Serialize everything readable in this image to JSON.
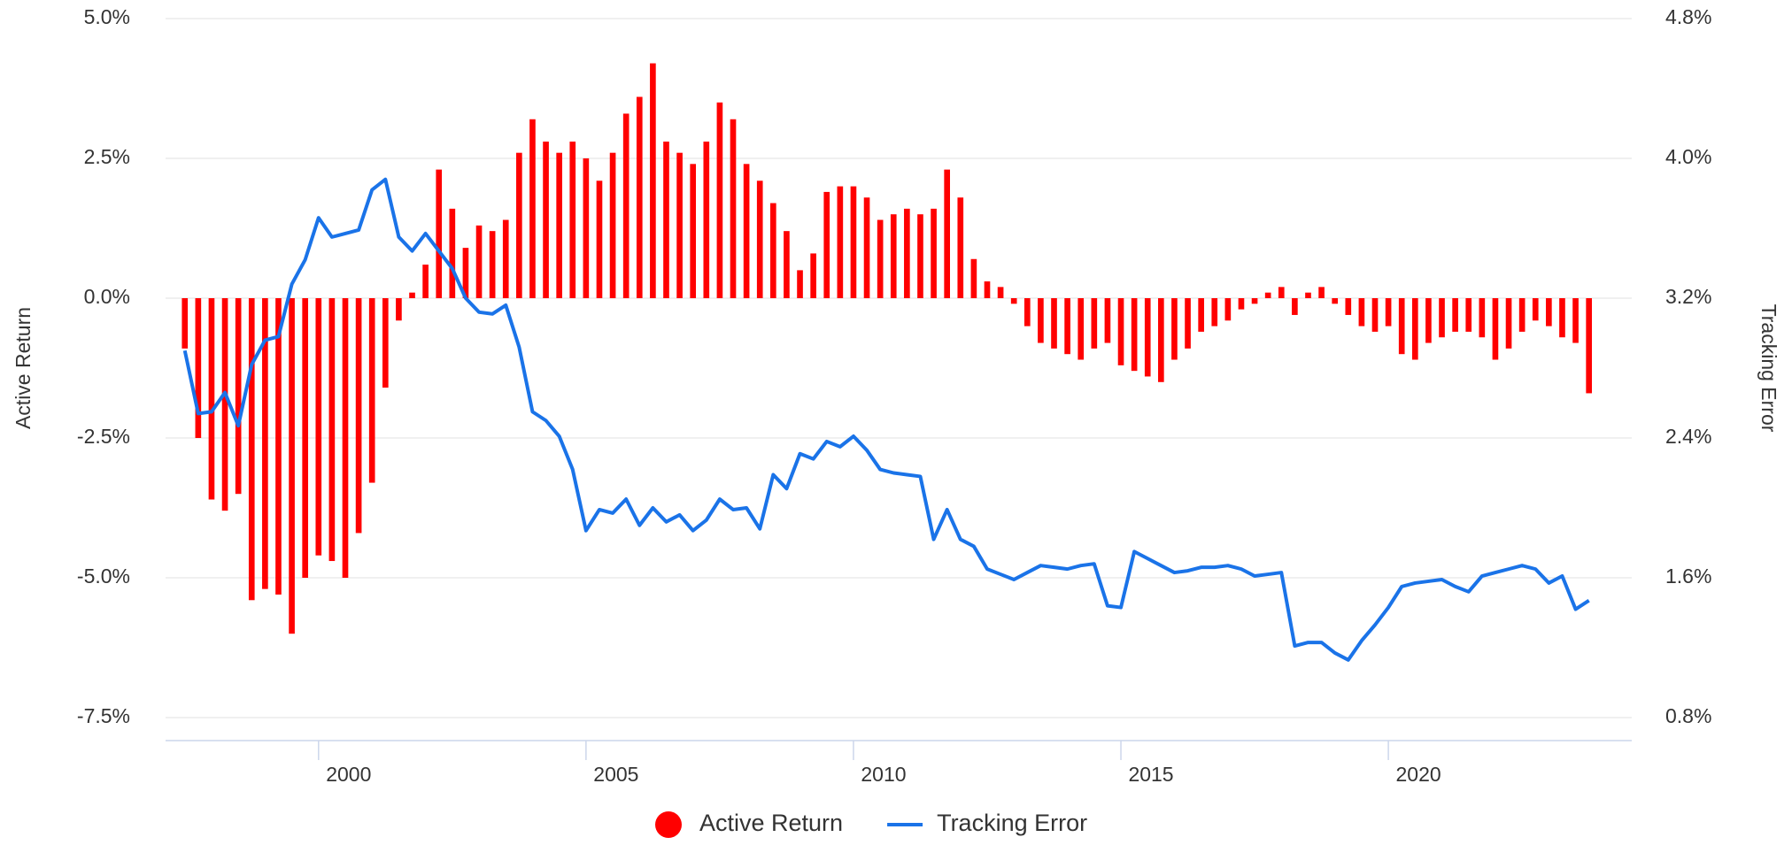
{
  "chart_data": {
    "type": "bar-line",
    "y_label": "Active Return",
    "y2_label": "Tracking Error",
    "xlim": [
      1997.14,
      2024.55
    ],
    "xticks": [
      2000,
      2005,
      2010,
      2015,
      2020
    ],
    "ylim": [
      -7.5,
      5
    ],
    "yticks": [
      {
        "value": -7.5,
        "label": "-7.5%"
      },
      {
        "value": -5,
        "label": "-5.0%"
      },
      {
        "value": -2.5,
        "label": "-2.5%"
      },
      {
        "value": 0,
        "label": "0.0%"
      },
      {
        "value": 2.5,
        "label": "2.5%"
      },
      {
        "value": 5,
        "label": "5.0%"
      }
    ],
    "y2lim": [
      0.8,
      4.8
    ],
    "y2ticks": [
      {
        "value": 0.8,
        "label": "0.8%"
      },
      {
        "value": 1.6,
        "label": "1.6%"
      },
      {
        "value": 2.4,
        "label": "2.4%"
      },
      {
        "value": 3.2,
        "label": "3.2%"
      },
      {
        "value": 4.0,
        "label": "4.0%"
      },
      {
        "value": 4.8,
        "label": "4.8%"
      }
    ],
    "grid": true,
    "legend": "bottom",
    "x": [
      1997.5,
      1997.75,
      1998,
      1998.25,
      1998.5,
      1998.75,
      1999,
      1999.25,
      1999.5,
      1999.75,
      2000,
      2000.25,
      2000.5,
      2000.75,
      2001,
      2001.25,
      2001.5,
      2001.75,
      2002,
      2002.25,
      2002.5,
      2002.75,
      2003,
      2003.25,
      2003.5,
      2003.75,
      2004,
      2004.25,
      2004.5,
      2004.75,
      2005,
      2005.25,
      2005.5,
      2005.75,
      2006,
      2006.25,
      2006.5,
      2006.75,
      2007,
      2007.25,
      2007.5,
      2007.75,
      2008,
      2008.25,
      2008.5,
      2008.75,
      2009,
      2009.25,
      2009.5,
      2009.75,
      2010,
      2010.25,
      2010.5,
      2010.75,
      2011,
      2011.25,
      2011.5,
      2011.75,
      2012,
      2012.25,
      2012.5,
      2012.75,
      2013,
      2013.25,
      2013.5,
      2013.75,
      2014,
      2014.25,
      2014.5,
      2014.75,
      2015,
      2015.25,
      2015.5,
      2015.75,
      2016,
      2016.25,
      2016.5,
      2016.75,
      2017,
      2017.25,
      2017.5,
      2017.75,
      2018,
      2018.25,
      2018.5,
      2018.75,
      2019,
      2019.25,
      2019.5,
      2019.75,
      2020,
      2020.25,
      2020.5,
      2020.75,
      2021,
      2021.25,
      2021.5,
      2021.75,
      2022,
      2022.25,
      2022.5,
      2022.75,
      2023,
      2023.25,
      2023.5,
      2023.75
    ],
    "series": [
      {
        "name": "Active Return",
        "type": "bar",
        "color": "#ff0000",
        "values": [
          -0.9,
          -2.5,
          -3.6,
          -3.8,
          -3.5,
          -5.4,
          -5.2,
          -5.3,
          -6.0,
          -5.0,
          -4.6,
          -4.7,
          -5.0,
          -4.2,
          -3.3,
          -1.6,
          -0.4,
          0.1,
          0.6,
          2.3,
          1.6,
          0.9,
          1.3,
          1.2,
          1.4,
          2.6,
          3.2,
          2.8,
          2.6,
          2.8,
          2.5,
          2.1,
          2.6,
          3.3,
          3.6,
          4.2,
          2.8,
          2.6,
          2.4,
          2.8,
          3.5,
          3.2,
          2.4,
          2.1,
          1.7,
          1.2,
          0.5,
          0.8,
          1.9,
          2.0,
          2.0,
          1.8,
          1.4,
          1.5,
          1.6,
          1.5,
          1.6,
          2.3,
          1.8,
          0.7,
          0.3,
          0.2,
          -0.1,
          -0.5,
          -0.8,
          -0.9,
          -1.0,
          -1.1,
          -0.9,
          -0.8,
          -1.2,
          -1.3,
          -1.4,
          -1.5,
          -1.1,
          -0.9,
          -0.6,
          -0.5,
          -0.4,
          -0.2,
          -0.1,
          0.1,
          0.2,
          -0.3,
          0.1,
          0.2,
          -0.1,
          -0.3,
          -0.5,
          -0.6,
          -0.5,
          -1.0,
          -1.1,
          -0.8,
          -0.7,
          -0.6,
          -0.6,
          -0.7,
          -1.1,
          -0.9,
          -0.6,
          -0.4,
          -0.5,
          -0.7,
          -0.8,
          -1.7
        ]
      },
      {
        "name": "Tracking Error",
        "type": "line",
        "axis": "y2",
        "color": "#1a73e8",
        "values": [
          2.9,
          2.54,
          2.55,
          2.66,
          2.47,
          2.82,
          2.96,
          2.98,
          3.28,
          3.42,
          3.66,
          3.55,
          3.57,
          3.59,
          3.82,
          3.88,
          3.55,
          3.47,
          3.57,
          3.47,
          3.37,
          3.2,
          3.12,
          3.11,
          3.16,
          2.92,
          2.55,
          2.5,
          2.41,
          2.22,
          1.87,
          1.99,
          1.97,
          2.05,
          1.9,
          2.0,
          1.92,
          1.96,
          1.87,
          1.93,
          2.05,
          1.99,
          2.0,
          1.88,
          2.19,
          2.11,
          2.31,
          2.28,
          2.38,
          2.35,
          2.41,
          2.33,
          2.22,
          2.2,
          2.19,
          2.18,
          1.82,
          1.99,
          1.82,
          1.78,
          1.65,
          1.62,
          1.59,
          1.63,
          1.67,
          1.66,
          1.65,
          1.67,
          1.68,
          1.44,
          1.43,
          1.75,
          1.71,
          1.67,
          1.63,
          1.64,
          1.66,
          1.66,
          1.67,
          1.65,
          1.61,
          1.62,
          1.63,
          1.21,
          1.23,
          1.23,
          1.17,
          1.13,
          1.24,
          1.33,
          1.43,
          1.55,
          1.57,
          1.58,
          1.59,
          1.55,
          1.52,
          1.61,
          1.63,
          1.65,
          1.67,
          1.65,
          1.57,
          1.61,
          1.42,
          1.47
        ]
      }
    ]
  }
}
